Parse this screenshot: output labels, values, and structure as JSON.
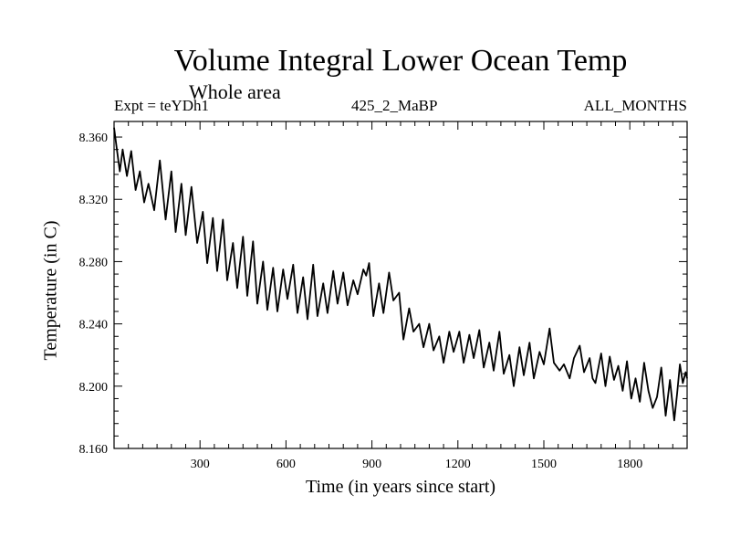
{
  "chart_data": {
    "type": "line",
    "title": "Volume Integral Lower Ocean Temp",
    "subtitle": "Whole area",
    "expt_label": "Expt = teYDh1",
    "run_label": "425_2_MaBP",
    "months_label": "ALL_MONTHS",
    "xlabel": "Time (in years since start)",
    "ylabel": "Temperature (in C)",
    "xlim": [
      0,
      2000
    ],
    "ylim": [
      8.16,
      8.37
    ],
    "x_ticks": [
      300,
      600,
      900,
      1200,
      1500,
      1800
    ],
    "x_tick_labels": [
      "300",
      "600",
      "900",
      "1200",
      "1500",
      "1800"
    ],
    "y_ticks": [
      8.16,
      8.2,
      8.24,
      8.28,
      8.32,
      8.36
    ],
    "y_tick_labels": [
      "8.160",
      "8.200",
      "8.240",
      "8.280",
      "8.320",
      "8.360"
    ],
    "grid": false,
    "series": [
      {
        "name": "Volume Integral Lower Ocean Temp",
        "x": [
          0,
          10,
          20,
          30,
          45,
          60,
          75,
          90,
          105,
          120,
          140,
          160,
          180,
          200,
          215,
          235,
          250,
          270,
          290,
          310,
          325,
          345,
          360,
          380,
          395,
          415,
          430,
          450,
          465,
          485,
          500,
          520,
          535,
          555,
          570,
          590,
          605,
          625,
          640,
          660,
          675,
          695,
          710,
          730,
          745,
          765,
          780,
          800,
          815,
          835,
          850,
          870,
          880,
          890,
          905,
          925,
          940,
          960,
          975,
          995,
          1010,
          1030,
          1045,
          1065,
          1080,
          1100,
          1115,
          1135,
          1150,
          1170,
          1185,
          1205,
          1220,
          1240,
          1255,
          1275,
          1290,
          1310,
          1325,
          1345,
          1360,
          1380,
          1395,
          1415,
          1430,
          1450,
          1465,
          1485,
          1500,
          1520,
          1535,
          1555,
          1570,
          1590,
          1605,
          1625,
          1640,
          1660,
          1670,
          1680,
          1700,
          1715,
          1730,
          1745,
          1760,
          1775,
          1790,
          1805,
          1820,
          1835,
          1850,
          1865,
          1880,
          1895,
          1910,
          1925,
          1940,
          1955,
          1965,
          1975,
          1985,
          1995,
          2000
        ],
        "values": [
          8.366,
          8.352,
          8.338,
          8.352,
          8.335,
          8.351,
          8.326,
          8.338,
          8.318,
          8.33,
          8.313,
          8.345,
          8.307,
          8.338,
          8.299,
          8.33,
          8.297,
          8.328,
          8.292,
          8.312,
          8.279,
          8.308,
          8.274,
          8.307,
          8.268,
          8.292,
          8.263,
          8.296,
          8.258,
          8.293,
          8.253,
          8.28,
          8.249,
          8.276,
          8.248,
          8.275,
          8.256,
          8.278,
          8.247,
          8.27,
          8.243,
          8.278,
          8.245,
          8.266,
          8.247,
          8.274,
          8.253,
          8.273,
          8.252,
          8.268,
          8.259,
          8.275,
          8.271,
          8.279,
          8.245,
          8.266,
          8.247,
          8.273,
          8.255,
          8.26,
          8.23,
          8.25,
          8.235,
          8.24,
          8.225,
          8.24,
          8.223,
          8.232,
          8.215,
          8.235,
          8.222,
          8.235,
          8.215,
          8.233,
          8.218,
          8.236,
          8.212,
          8.228,
          8.21,
          8.235,
          8.208,
          8.22,
          8.2,
          8.225,
          8.207,
          8.228,
          8.205,
          8.222,
          8.214,
          8.237,
          8.215,
          8.21,
          8.214,
          8.205,
          8.218,
          8.226,
          8.209,
          8.218,
          8.205,
          8.202,
          8.221,
          8.2,
          8.219,
          8.204,
          8.213,
          8.197,
          8.216,
          8.192,
          8.205,
          8.19,
          8.215,
          8.197,
          8.186,
          8.193,
          8.212,
          8.181,
          8.204,
          8.178,
          8.195,
          8.214,
          8.202,
          8.209,
          8.205
        ]
      }
    ]
  }
}
